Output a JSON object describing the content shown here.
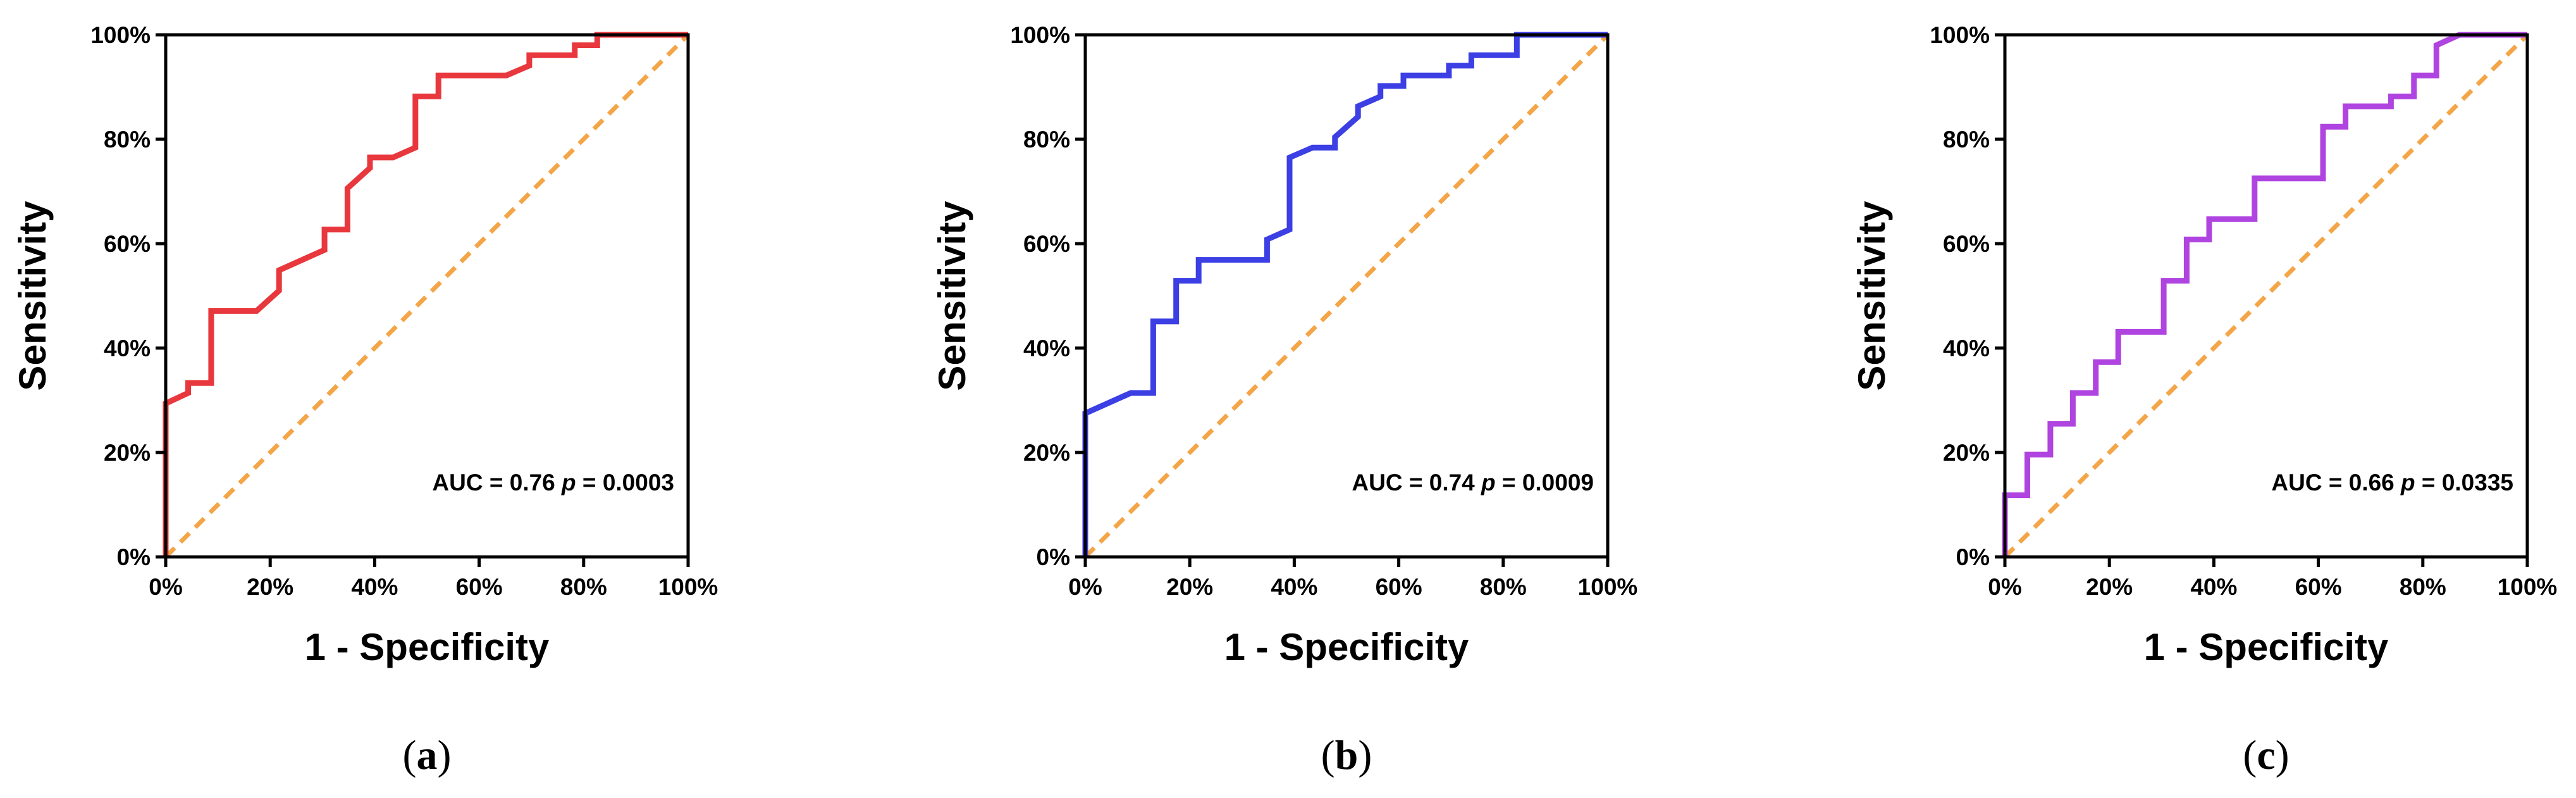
{
  "chart_data": [
    {
      "type": "line",
      "title": "",
      "xlabel": "1 - Specificity",
      "ylabel": "Sensitivity",
      "xlim": [
        0,
        100
      ],
      "ylim": [
        0,
        100
      ],
      "ticks": [
        "0%",
        "20%",
        "40%",
        "60%",
        "80%",
        "100%"
      ],
      "annotation": {
        "auc": "AUC = 0.76",
        "p_label": "p",
        "p_value": "= 0.0003"
      },
      "caption": {
        "open": "(",
        "letter": "a",
        "close": ")"
      },
      "line_color": "#e8383d",
      "reference_color": "#f4a547",
      "series": [
        {
          "name": "ROC",
          "x": [
            0,
            0,
            4.3,
            4.3,
            8.7,
            8.7,
            17.4,
            21.7,
            21.7,
            30.4,
            30.4,
            34.8,
            34.8,
            39.1,
            39.1,
            43.5,
            47.8,
            47.8,
            52.2,
            52.2,
            65.2,
            69.6,
            69.6,
            78.3,
            78.3,
            82.6,
            82.6,
            100
          ],
          "y": [
            0,
            29.4,
            31.4,
            33.3,
            33.3,
            47.1,
            47.1,
            51.0,
            54.9,
            58.8,
            62.7,
            62.7,
            70.6,
            74.5,
            76.5,
            76.5,
            78.4,
            88.2,
            88.2,
            92.2,
            92.2,
            94.1,
            96.1,
            96.1,
            98.0,
            98.0,
            100,
            100
          ]
        },
        {
          "name": "Reference",
          "x": [
            0,
            100
          ],
          "y": [
            0,
            100
          ]
        }
      ]
    },
    {
      "type": "line",
      "title": "",
      "xlabel": "1 - Specificity",
      "ylabel": "Sensitivity",
      "xlim": [
        0,
        100
      ],
      "ylim": [
        0,
        100
      ],
      "ticks": [
        "0%",
        "20%",
        "40%",
        "60%",
        "80%",
        "100%"
      ],
      "annotation": {
        "auc": "AUC = 0.74",
        "p_label": "p",
        "p_value": "= 0.0009"
      },
      "caption": {
        "open": "(",
        "letter": "b",
        "close": ")"
      },
      "line_color": "#3b3fe4",
      "reference_color": "#f4a547",
      "series": [
        {
          "name": "ROC",
          "x": [
            0,
            0,
            8.7,
            13.0,
            13.0,
            17.4,
            17.4,
            21.7,
            21.7,
            34.8,
            34.8,
            39.1,
            39.1,
            43.5,
            47.8,
            47.8,
            52.2,
            52.2,
            56.5,
            56.5,
            60.9,
            60.9,
            69.6,
            69.6,
            73.9,
            73.9,
            82.6,
            82.6,
            100
          ],
          "y": [
            0,
            27.5,
            31.4,
            31.4,
            45.1,
            45.1,
            52.9,
            52.9,
            56.9,
            56.9,
            60.8,
            62.7,
            76.5,
            78.4,
            78.4,
            80.4,
            84.3,
            86.3,
            88.2,
            90.2,
            90.2,
            92.2,
            92.2,
            94.1,
            94.1,
            96.1,
            96.1,
            100,
            100
          ]
        },
        {
          "name": "Reference",
          "x": [
            0,
            100
          ],
          "y": [
            0,
            100
          ]
        }
      ]
    },
    {
      "type": "line",
      "title": "",
      "xlabel": "1 - Specificity",
      "ylabel": "Sensitivity",
      "xlim": [
        0,
        100
      ],
      "ylim": [
        0,
        100
      ],
      "ticks": [
        "0%",
        "20%",
        "40%",
        "60%",
        "80%",
        "100%"
      ],
      "annotation": {
        "auc": "AUC = 0.66",
        "p_label": "p",
        "p_value": "= 0.0335"
      },
      "caption": {
        "open": "(",
        "letter": "c",
        "close": ")"
      },
      "line_color": "#b044e0",
      "reference_color": "#f4a547",
      "series": [
        {
          "name": "ROC",
          "x": [
            0,
            0,
            4.3,
            4.3,
            8.7,
            8.7,
            13.0,
            13.0,
            17.4,
            17.4,
            21.7,
            21.7,
            30.4,
            30.4,
            34.8,
            34.8,
            39.1,
            39.1,
            47.8,
            47.8,
            60.9,
            60.9,
            65.2,
            65.2,
            73.9,
            73.9,
            78.3,
            78.3,
            82.6,
            82.6,
            87.0,
            100
          ],
          "y": [
            0,
            11.8,
            11.8,
            19.6,
            19.6,
            25.5,
            25.5,
            31.4,
            31.4,
            37.3,
            37.3,
            43.1,
            43.1,
            52.9,
            52.9,
            60.8,
            60.8,
            64.7,
            64.7,
            72.5,
            72.5,
            82.4,
            82.4,
            86.3,
            86.3,
            88.2,
            88.2,
            92.2,
            92.2,
            98.0,
            100,
            100
          ]
        },
        {
          "name": "Reference",
          "x": [
            0,
            100
          ],
          "y": [
            0,
            100
          ]
        }
      ]
    }
  ]
}
